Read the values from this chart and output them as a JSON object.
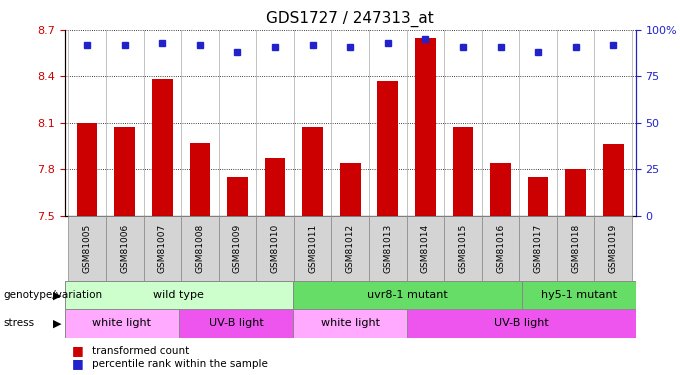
{
  "title": "GDS1727 / 247313_at",
  "samples": [
    "GSM81005",
    "GSM81006",
    "GSM81007",
    "GSM81008",
    "GSM81009",
    "GSM81010",
    "GSM81011",
    "GSM81012",
    "GSM81013",
    "GSM81014",
    "GSM81015",
    "GSM81016",
    "GSM81017",
    "GSM81018",
    "GSM81019"
  ],
  "bar_values": [
    8.1,
    8.07,
    8.38,
    7.97,
    7.75,
    7.87,
    8.07,
    7.84,
    8.37,
    8.65,
    8.07,
    7.84,
    7.75,
    7.8,
    7.96
  ],
  "dot_pct": [
    92,
    92,
    93,
    92,
    88,
    91,
    92,
    91,
    93,
    95,
    91,
    91,
    88,
    91,
    92
  ],
  "ylim_left": [
    7.5,
    8.7
  ],
  "yticks_left": [
    7.5,
    7.8,
    8.1,
    8.4,
    8.7
  ],
  "yticks_right": [
    0,
    25,
    50,
    75,
    100
  ],
  "bar_color": "#cc0000",
  "dot_color": "#2222cc",
  "bar_bottom": 7.5,
  "genotype_groups": [
    {
      "label": "wild type",
      "start": 0,
      "end": 6,
      "color": "#ccffcc"
    },
    {
      "label": "uvr8-1 mutant",
      "start": 6,
      "end": 12,
      "color": "#66dd66"
    },
    {
      "label": "hy5-1 mutant",
      "start": 12,
      "end": 15,
      "color": "#66dd66"
    }
  ],
  "stress_groups": [
    {
      "label": "white light",
      "start": 0,
      "end": 3,
      "color": "#ffaaff"
    },
    {
      "label": "UV-B light",
      "start": 3,
      "end": 6,
      "color": "#ee55ee"
    },
    {
      "label": "white light",
      "start": 6,
      "end": 9,
      "color": "#ffaaff"
    },
    {
      "label": "UV-B light",
      "start": 9,
      "end": 15,
      "color": "#ee55ee"
    }
  ],
  "background_color": "#ffffff",
  "chart_bg": "#ffffff",
  "tick_label_bg": "#d4d4d4"
}
